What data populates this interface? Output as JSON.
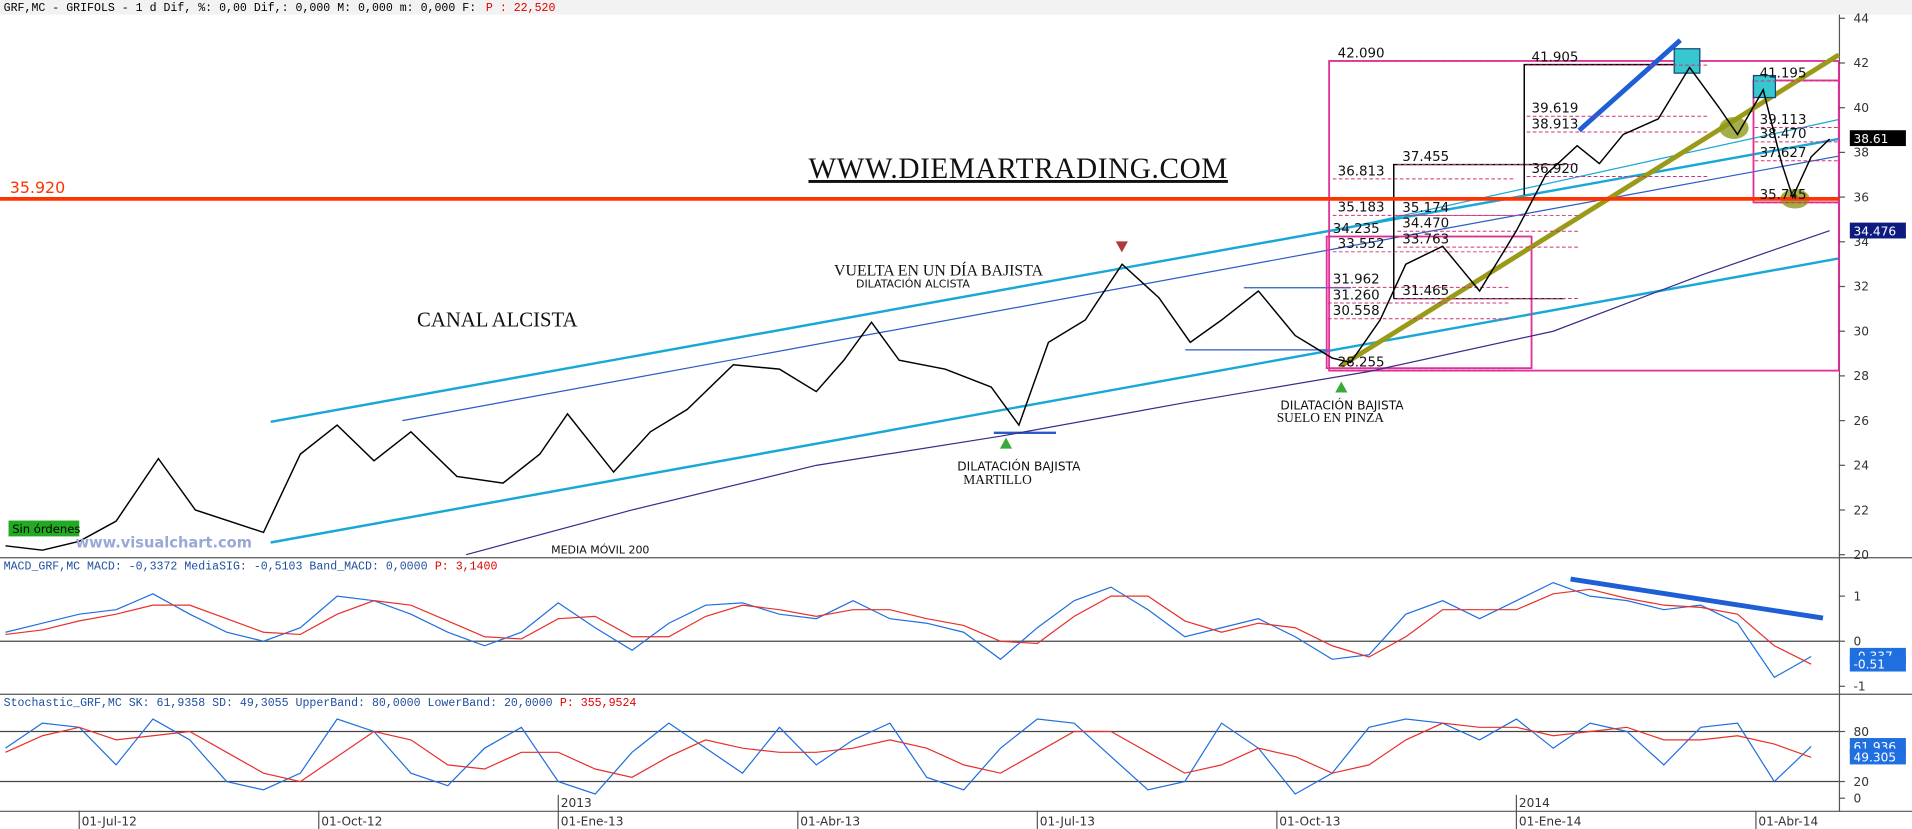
{
  "chart_data": [
    {
      "type": "line",
      "title": "GRF,MC - GRIFOLS -  1 d Dif, %: 0,00 Dif,: 0,000 M: 0,000 m: 0,000 F:",
      "title_value": "P : 22,520",
      "xlim": [
        -4.3,
        95.5
      ],
      "ylim": [
        20,
        44
      ],
      "yticks": [
        20,
        22,
        24,
        26,
        28,
        30,
        32,
        34,
        36,
        38,
        40,
        42,
        44
      ],
      "series": [
        {
          "color": "#000000",
          "x": [
            -4,
            -2,
            0,
            2,
            4.3,
            6.3,
            10,
            12,
            14,
            16,
            18,
            20.5,
            23,
            25,
            26.5,
            29,
            31,
            33,
            35.5,
            38,
            40,
            41.5,
            43,
            44.5,
            47,
            49.5,
            51,
            52.6,
            54.6,
            56.6,
            58.6,
            60.3,
            62,
            64,
            66,
            68,
            69,
            70.6,
            72,
            74,
            76,
            78,
            79.6,
            81.3,
            82.5,
            83.8,
            85.7,
            87.4,
            89,
            90,
            91.4,
            92.4,
            93,
            94,
            95
          ],
          "values": [
            20.4,
            20.2,
            20.6,
            21.5,
            24.3,
            22.0,
            21.0,
            24.5,
            25.8,
            24.2,
            25.5,
            23.5,
            23.2,
            24.5,
            26.3,
            23.7,
            25.5,
            26.5,
            28.5,
            28.3,
            27.3,
            28.7,
            30.4,
            28.7,
            28.3,
            27.5,
            25.8,
            29.5,
            30.5,
            33.0,
            31.5,
            29.5,
            30.5,
            31.8,
            29.8,
            28.8,
            28.6,
            30.5,
            33.0,
            33.8,
            31.8,
            34.5,
            37.0,
            38.3,
            37.5,
            38.8,
            39.5,
            41.8,
            40.0,
            38.8,
            40.8,
            37.5,
            36.0,
            37.8,
            38.6
          ]
        },
        {
          "color": "#3a2a8c",
          "x": [
            21,
            30,
            40,
            50,
            60,
            70,
            80,
            88,
            95
          ],
          "values": [
            20.0,
            22.0,
            24.0,
            25.3,
            26.8,
            28.2,
            30.0,
            32.5,
            34.5
          ]
        }
      ],
      "support": {
        "value": 35.92,
        "label": "35.920",
        "color": "#ff3300"
      },
      "levels": [
        {
          "value": 42.09,
          "label": "42.090"
        },
        {
          "value": 41.905,
          "label": "41.905"
        },
        {
          "value": 39.619,
          "label": "39.619"
        },
        {
          "value": 38.913,
          "label": "38.913"
        },
        {
          "value": 37.455,
          "label": "37.455"
        },
        {
          "value": 36.813,
          "label": "36.813"
        },
        {
          "value": 36.92,
          "label": "36.920"
        },
        {
          "value": 35.183,
          "label": "35.183"
        },
        {
          "value": 35.174,
          "label": "35.174"
        },
        {
          "value": 34.47,
          "label": "34.470"
        },
        {
          "value": 34.235,
          "label": "34.235"
        },
        {
          "value": 33.552,
          "label": "33.552"
        },
        {
          "value": 33.763,
          "label": "33.763"
        },
        {
          "value": 31.962,
          "label": "31.962"
        },
        {
          "value": 31.26,
          "label": "31.260"
        },
        {
          "value": 30.558,
          "label": "30.558"
        },
        {
          "value": 31.465,
          "label": "31.465"
        },
        {
          "value": 28.255,
          "label": "28.255"
        },
        {
          "value": 41.195,
          "label": "41.195"
        },
        {
          "value": 39.113,
          "label": "39.113"
        },
        {
          "value": 38.47,
          "label": "38.470"
        },
        {
          "value": 37.627,
          "label": "37.627"
        },
        {
          "value": 35.745,
          "label": "35.745"
        }
      ],
      "markers": [
        {
          "value": 38.61,
          "color": "#000000"
        },
        {
          "value": 34.476,
          "color": "#0d1a80"
        }
      ],
      "annotations": [
        "WWW.DIEMARTRADING.COM",
        "CANAL ALCISTA",
        "VUELTA EN UN DÍA BAJISTA",
        "DILATACIÓN ALCISTA",
        "DILATACIÓN BAJISTA",
        "MARTILLO",
        "DILATACIÓN BAJISTA",
        "SUELO EN PINZA",
        "MEDIA MÓVIL 200"
      ],
      "status": "Sin órdenes",
      "watermark": "www.visualchart.com"
    },
    {
      "type": "line",
      "title": "MACD_GRF,MC MACD: -0,3372 MediaSIG: -0,5103 Band_MACD: 0,0000",
      "title_value": "P: 3,1400",
      "xlim": [
        -4.3,
        95.5
      ],
      "ylim": [
        -1.15,
        1.8
      ],
      "yticks": [
        -1,
        0,
        1
      ],
      "hlines": [
        0
      ],
      "x": [
        -4,
        -2,
        0,
        2,
        4,
        6,
        8,
        10,
        12,
        14,
        16,
        18,
        20,
        22,
        24,
        26,
        28,
        30,
        32,
        34,
        36,
        38,
        40,
        42,
        44,
        46,
        48,
        50,
        52,
        54,
        56,
        58,
        60,
        62,
        64,
        66,
        68,
        70,
        72,
        74,
        76,
        78,
        80,
        82,
        84,
        86,
        88,
        90,
        92,
        94
      ],
      "series": [
        {
          "color": "#1f6fe0",
          "values": [
            0.2,
            0.4,
            0.6,
            0.7,
            1.05,
            0.6,
            0.2,
            0.0,
            0.3,
            1.0,
            0.9,
            0.6,
            0.2,
            -0.1,
            0.2,
            0.85,
            0.3,
            -0.2,
            0.4,
            0.8,
            0.85,
            0.6,
            0.5,
            0.9,
            0.5,
            0.4,
            0.2,
            -0.4,
            0.3,
            0.9,
            1.2,
            0.7,
            0.1,
            0.3,
            0.5,
            0.1,
            -0.4,
            -0.3,
            0.6,
            0.9,
            0.5,
            0.9,
            1.3,
            1.0,
            0.9,
            0.7,
            0.8,
            0.4,
            -0.8,
            -0.34
          ]
        },
        {
          "color": "#e8302a",
          "values": [
            0.15,
            0.25,
            0.45,
            0.6,
            0.8,
            0.8,
            0.5,
            0.2,
            0.15,
            0.6,
            0.9,
            0.8,
            0.45,
            0.1,
            0.05,
            0.5,
            0.55,
            0.1,
            0.1,
            0.55,
            0.8,
            0.7,
            0.55,
            0.7,
            0.7,
            0.5,
            0.35,
            0.0,
            -0.05,
            0.55,
            1.0,
            1.0,
            0.45,
            0.2,
            0.4,
            0.3,
            -0.1,
            -0.35,
            0.1,
            0.7,
            0.7,
            0.7,
            1.05,
            1.15,
            0.95,
            0.8,
            0.75,
            0.6,
            -0.1,
            -0.51
          ]
        }
      ],
      "markers": [
        {
          "value": -0.337,
          "color": "#1f6fe0"
        },
        {
          "value": -0.51,
          "color": "#1f6fe0"
        }
      ]
    },
    {
      "type": "line",
      "title": "Stochastic_GRF,MC SK: 61,9358 SD: 49,3055 UpperBand: 80,0000 LowerBand: 20,0000",
      "title_value": "P: 355,9524",
      "xlim": [
        -4.3,
        95.5
      ],
      "ylim": [
        -15,
        121
      ],
      "yticks": [
        0,
        20,
        80
      ],
      "hlines": [
        20,
        80
      ],
      "x": [
        -4,
        -2,
        0,
        2,
        4,
        6,
        8,
        10,
        12,
        14,
        16,
        18,
        20,
        22,
        24,
        26,
        28,
        30,
        32,
        34,
        36,
        38,
        40,
        42,
        44,
        46,
        48,
        50,
        52,
        54,
        56,
        58,
        60,
        62,
        64,
        66,
        68,
        70,
        72,
        74,
        76,
        78,
        80,
        82,
        84,
        86,
        88,
        90,
        92,
        94
      ],
      "series": [
        {
          "color": "#1f6fe0",
          "values": [
            60,
            90,
            85,
            40,
            95,
            70,
            20,
            10,
            30,
            95,
            80,
            30,
            15,
            60,
            85,
            20,
            5,
            55,
            90,
            60,
            30,
            85,
            40,
            70,
            90,
            25,
            10,
            60,
            95,
            90,
            50,
            10,
            20,
            90,
            60,
            5,
            30,
            85,
            95,
            90,
            70,
            95,
            60,
            90,
            80,
            40,
            85,
            90,
            20,
            62
          ]
        },
        {
          "color": "#e8302a",
          "values": [
            55,
            75,
            85,
            70,
            75,
            80,
            55,
            30,
            20,
            50,
            80,
            70,
            40,
            35,
            55,
            55,
            35,
            25,
            50,
            70,
            60,
            55,
            55,
            60,
            70,
            60,
            40,
            30,
            55,
            80,
            80,
            55,
            30,
            40,
            60,
            50,
            30,
            40,
            70,
            90,
            85,
            85,
            75,
            80,
            85,
            70,
            70,
            75,
            65,
            49
          ]
        }
      ],
      "markers": [
        {
          "value": 61.936,
          "color": "#1f6fe0"
        },
        {
          "value": 49.305,
          "color": "#1f6fe0"
        }
      ],
      "xticks": [
        {
          "value": 0,
          "label": "01-Jul-12"
        },
        {
          "value": 13,
          "label": "01-Oct-12"
        },
        {
          "value": 26,
          "label": "01-Ene-13"
        },
        {
          "value": 39,
          "label": "01-Abr-13"
        },
        {
          "value": 52,
          "label": "01-Jul-13"
        },
        {
          "value": 65,
          "label": "01-Oct-13"
        },
        {
          "value": 78,
          "label": "01-Ene-14"
        },
        {
          "value": 91,
          "label": "01-Abr-14"
        }
      ],
      "year_ticks": [
        {
          "value": 26,
          "label": "2013"
        },
        {
          "value": 78,
          "label": "2014"
        }
      ]
    }
  ]
}
